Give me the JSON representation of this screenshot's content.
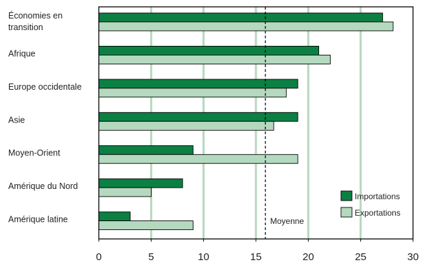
{
  "chart_data": {
    "type": "bar",
    "orientation": "horizontal",
    "categories": [
      [
        "Économies en",
        "transition"
      ],
      [
        "Afrique"
      ],
      [
        "Europe occidentale"
      ],
      [
        "Asie"
      ],
      [
        "Moyen-Orient"
      ],
      [
        "Amérique du Nord"
      ],
      [
        "Amérique latine"
      ]
    ],
    "series": [
      {
        "name": "Importations",
        "color": "#0c8043",
        "values": [
          27.1,
          21,
          19,
          19,
          9,
          8,
          3
        ]
      },
      {
        "name": "Exportations",
        "color": "#b4d9bf",
        "values": [
          28.1,
          22.1,
          17.9,
          16.7,
          19,
          5,
          9
        ]
      }
    ],
    "xlim": [
      0,
      30
    ],
    "xticks": [
      0,
      5,
      10,
      15,
      20,
      25,
      30
    ],
    "grid": {
      "vertical": true,
      "color": "#b7d7bf"
    },
    "reference_line": {
      "value": 15.9,
      "label": "Moyenne",
      "style": "dashed"
    },
    "legend": {
      "position": "bottom-right"
    }
  }
}
